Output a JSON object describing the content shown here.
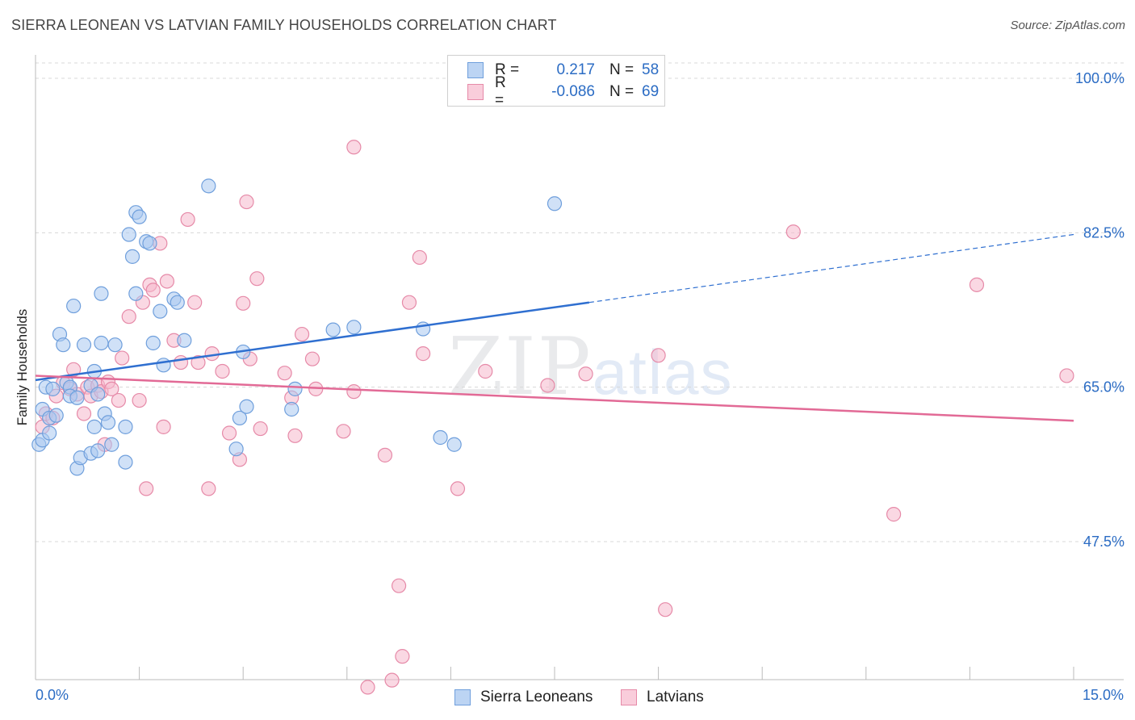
{
  "title": "SIERRA LEONEAN VS LATVIAN FAMILY HOUSEHOLDS CORRELATION CHART",
  "source": "Source: ZipAtlas.com",
  "watermark": {
    "zip": "ZIP",
    "atlas": "atlas"
  },
  "legend": {
    "series1": {
      "r_label": "R =",
      "r_value": "0.217",
      "n_label": "N =",
      "n_value": "58"
    },
    "series2": {
      "r_label": "R =",
      "r_value": "-0.086",
      "n_label": "N =",
      "n_value": "69"
    }
  },
  "bottom_legend": {
    "series1": "Sierra Leoneans",
    "series2": "Latvians"
  },
  "colors": {
    "blue_fill": "#a9c8f0",
    "blue_stroke": "#6f9fdc",
    "blue_line": "#2f6fd0",
    "pink_fill": "#f5b8cc",
    "pink_stroke": "#e68aa8",
    "pink_line": "#e26a96",
    "axis_text": "#2b6cc4",
    "grid": "#d8d8d8"
  },
  "chart_data": {
    "type": "scatter",
    "title": "SIERRA LEONEAN VS LATVIAN FAMILY HOUSEHOLDS CORRELATION CHART",
    "xlabel": "",
    "ylabel": "Family Households",
    "xlim": [
      0,
      15
    ],
    "ylim": [
      30,
      102
    ],
    "x_tick_labels": [
      "0.0%",
      "15.0%"
    ],
    "y_ticks": [
      47.5,
      65.0,
      82.5,
      100.0
    ],
    "y_tick_labels": [
      "47.5%",
      "65.0%",
      "82.5%",
      "100.0%"
    ],
    "series": [
      {
        "name": "Sierra Leoneans",
        "trend": {
          "x0": 0,
          "y0": 65.8,
          "x1": 8.0,
          "y1": 74.6,
          "dashed_to_x": 15,
          "dashed_to_y": 82.3
        },
        "points": [
          [
            0.05,
            58.5
          ],
          [
            0.1,
            59.0
          ],
          [
            0.1,
            62.5
          ],
          [
            0.15,
            65.0
          ],
          [
            0.2,
            61.5
          ],
          [
            0.2,
            59.8
          ],
          [
            0.25,
            64.8
          ],
          [
            0.3,
            61.8
          ],
          [
            0.35,
            71.0
          ],
          [
            0.4,
            69.8
          ],
          [
            0.45,
            65.5
          ],
          [
            0.5,
            65.0
          ],
          [
            0.5,
            64.0
          ],
          [
            0.55,
            74.2
          ],
          [
            0.6,
            55.8
          ],
          [
            0.6,
            63.8
          ],
          [
            0.65,
            57.0
          ],
          [
            0.7,
            69.8
          ],
          [
            0.8,
            65.2
          ],
          [
            0.8,
            57.5
          ],
          [
            0.85,
            60.5
          ],
          [
            0.85,
            66.8
          ],
          [
            0.9,
            57.8
          ],
          [
            0.9,
            64.2
          ],
          [
            0.95,
            70.0
          ],
          [
            0.95,
            75.6
          ],
          [
            1.0,
            62.0
          ],
          [
            1.05,
            61.0
          ],
          [
            1.1,
            58.5
          ],
          [
            1.15,
            69.8
          ],
          [
            1.3,
            56.5
          ],
          [
            1.3,
            60.5
          ],
          [
            1.35,
            82.3
          ],
          [
            1.4,
            79.8
          ],
          [
            1.45,
            84.8
          ],
          [
            1.45,
            75.6
          ],
          [
            1.5,
            84.3
          ],
          [
            1.6,
            81.5
          ],
          [
            1.65,
            81.3
          ],
          [
            1.7,
            70.0
          ],
          [
            1.8,
            73.6
          ],
          [
            1.85,
            67.5
          ],
          [
            2.0,
            75.0
          ],
          [
            2.05,
            74.6
          ],
          [
            2.15,
            70.3
          ],
          [
            2.5,
            87.8
          ],
          [
            2.9,
            58.0
          ],
          [
            2.95,
            61.5
          ],
          [
            3.0,
            69.0
          ],
          [
            3.05,
            62.8
          ],
          [
            3.7,
            62.5
          ],
          [
            3.75,
            64.8
          ],
          [
            4.3,
            71.5
          ],
          [
            4.6,
            71.8
          ],
          [
            5.6,
            71.6
          ],
          [
            5.85,
            59.3
          ],
          [
            6.05,
            58.5
          ],
          [
            7.5,
            85.8
          ]
        ]
      },
      {
        "name": "Latvians",
        "trend": {
          "x0": 0,
          "y0": 66.3,
          "x1": 15,
          "y1": 61.2
        },
        "points": [
          [
            0.1,
            60.5
          ],
          [
            0.15,
            62.0
          ],
          [
            0.25,
            61.5
          ],
          [
            0.3,
            64.0
          ],
          [
            0.4,
            65.5
          ],
          [
            0.5,
            64.8
          ],
          [
            0.55,
            67.0
          ],
          [
            0.6,
            64.2
          ],
          [
            0.7,
            62.0
          ],
          [
            0.75,
            65.0
          ],
          [
            0.8,
            64.0
          ],
          [
            0.9,
            65.2
          ],
          [
            0.95,
            64.5
          ],
          [
            1.0,
            58.5
          ],
          [
            1.05,
            65.6
          ],
          [
            1.1,
            64.8
          ],
          [
            1.2,
            63.5
          ],
          [
            1.25,
            68.3
          ],
          [
            1.35,
            73.0
          ],
          [
            1.5,
            63.5
          ],
          [
            1.55,
            74.6
          ],
          [
            1.6,
            53.5
          ],
          [
            1.65,
            76.6
          ],
          [
            1.7,
            76.0
          ],
          [
            1.8,
            81.3
          ],
          [
            1.85,
            60.5
          ],
          [
            1.9,
            77.0
          ],
          [
            2.0,
            70.3
          ],
          [
            2.1,
            67.8
          ],
          [
            2.2,
            84.0
          ],
          [
            2.3,
            74.6
          ],
          [
            2.35,
            67.8
          ],
          [
            2.5,
            53.5
          ],
          [
            2.55,
            68.8
          ],
          [
            2.7,
            66.8
          ],
          [
            2.8,
            59.8
          ],
          [
            2.95,
            56.8
          ],
          [
            3.0,
            74.5
          ],
          [
            3.05,
            86.0
          ],
          [
            3.1,
            68.2
          ],
          [
            3.2,
            77.3
          ],
          [
            3.25,
            60.3
          ],
          [
            3.6,
            66.6
          ],
          [
            3.7,
            63.8
          ],
          [
            3.75,
            59.5
          ],
          [
            3.85,
            71.0
          ],
          [
            4.0,
            68.2
          ],
          [
            4.05,
            64.8
          ],
          [
            4.45,
            60.0
          ],
          [
            4.6,
            64.5
          ],
          [
            4.6,
            92.2
          ],
          [
            4.8,
            31.0
          ],
          [
            5.05,
            57.3
          ],
          [
            5.15,
            31.8
          ],
          [
            5.25,
            42.5
          ],
          [
            5.3,
            34.5
          ],
          [
            5.4,
            74.6
          ],
          [
            5.55,
            79.7
          ],
          [
            5.6,
            68.8
          ],
          [
            6.1,
            53.5
          ],
          [
            6.5,
            66.8
          ],
          [
            7.4,
            65.2
          ],
          [
            7.95,
            66.5
          ],
          [
            9.0,
            68.6
          ],
          [
            9.1,
            39.8
          ],
          [
            10.95,
            82.6
          ],
          [
            12.4,
            50.6
          ],
          [
            13.6,
            76.6
          ],
          [
            14.9,
            66.3
          ]
        ]
      }
    ]
  }
}
